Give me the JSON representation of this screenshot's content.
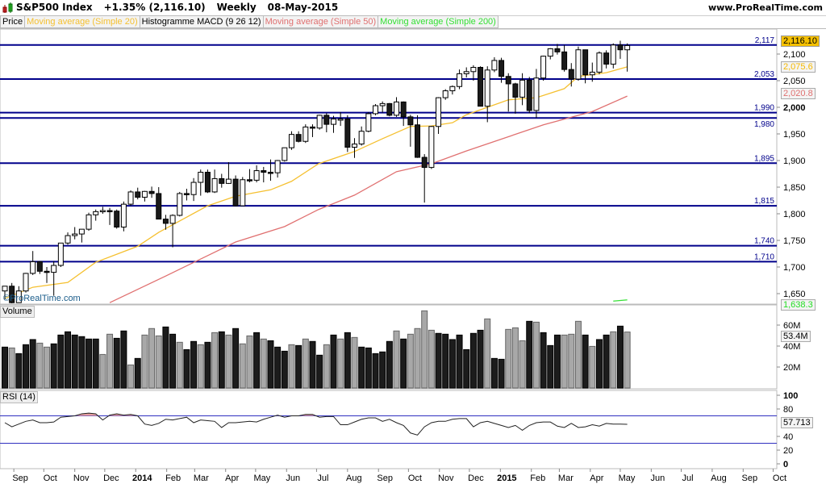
{
  "header": {
    "instrument": "S&P500 Index",
    "change": "+1.35% (2,116.10)",
    "period": "Weekly",
    "date": "08-May-2015",
    "site": "www.ProRealTime.com"
  },
  "legend": [
    {
      "label": "Price",
      "color": "#000000"
    },
    {
      "label": "Moving average (Simple 20)",
      "color": "#f5c030"
    },
    {
      "label": "Histogramme MACD (9 26 12)",
      "color": "#000000"
    },
    {
      "label": "Moving average (Simple 50)",
      "color": "#e07070"
    },
    {
      "label": "Moving average (Simple 200)",
      "color": "#33e033"
    }
  ],
  "watermark": "©ProRealTime.com",
  "panels": {
    "volume": "Volume",
    "rsi": "RSI (14)"
  },
  "badges": {
    "price": "2,116.10",
    "ma20": "2,075.6",
    "ma50": "2,020.8",
    "ma200": "1,638.3",
    "volume": "53.4M",
    "rsi": "57.713"
  },
  "colors": {
    "level_line": "#00008b",
    "ma20": "#f5c030",
    "ma50": "#e07070",
    "ma200": "#33e033",
    "rsi_band": "#3030c0",
    "price_badge": "#f5c000"
  },
  "chart_data": {
    "type": "candlestick",
    "price_axis": {
      "ticks": [
        "2,100",
        "2,050",
        "2,000",
        "1,950",
        "1,900",
        "1,850",
        "1,800",
        "1,750",
        "1,700",
        "1,650"
      ],
      "tick_values": [
        2100,
        2050,
        2000,
        1950,
        1900,
        1850,
        1800,
        1750,
        1700,
        1650
      ],
      "range": [
        1630,
        2150
      ]
    },
    "levels": [
      {
        "value": 2117,
        "label": "2,117"
      },
      {
        "value": 2053,
        "label": "2,053"
      },
      {
        "value": 1990,
        "label": "1,990"
      },
      {
        "value": 1980,
        "label": "1,980"
      },
      {
        "value": 1895,
        "label": "1,895"
      },
      {
        "value": 1815,
        "label": "1,815"
      },
      {
        "value": 1740,
        "label": "1,740"
      },
      {
        "value": 1710,
        "label": "1,710"
      }
    ],
    "dates": [
      "2013-08-23",
      "2013-08-30",
      "2013-09-06",
      "2013-09-13",
      "2013-09-20",
      "2013-09-27",
      "2013-10-04",
      "2013-10-11",
      "2013-10-18",
      "2013-10-25",
      "2013-11-01",
      "2013-11-08",
      "2013-11-15",
      "2013-11-22",
      "2013-11-29",
      "2013-12-06",
      "2013-12-13",
      "2013-12-20",
      "2013-12-27",
      "2014-01-03",
      "2014-01-10",
      "2014-01-17",
      "2014-01-24",
      "2014-01-31",
      "2014-02-07",
      "2014-02-14",
      "2014-02-21",
      "2014-02-28",
      "2014-03-07",
      "2014-03-14",
      "2014-03-21",
      "2014-03-28",
      "2014-04-04",
      "2014-04-11",
      "2014-04-18",
      "2014-04-25",
      "2014-05-02",
      "2014-05-09",
      "2014-05-16",
      "2014-05-23",
      "2014-05-30",
      "2014-06-06",
      "2014-06-13",
      "2014-06-20",
      "2014-06-27",
      "2014-07-04",
      "2014-07-11",
      "2014-07-18",
      "2014-07-25",
      "2014-08-01",
      "2014-08-08",
      "2014-08-15",
      "2014-08-22",
      "2014-08-29",
      "2014-09-05",
      "2014-09-12",
      "2014-09-19",
      "2014-09-26",
      "2014-10-03",
      "2014-10-10",
      "2014-10-17",
      "2014-10-24",
      "2014-10-31",
      "2014-11-07",
      "2014-11-14",
      "2014-11-21",
      "2014-11-28",
      "2014-12-05",
      "2014-12-12",
      "2014-12-19",
      "2014-12-26",
      "2015-01-02",
      "2015-01-09",
      "2015-01-16",
      "2015-01-23",
      "2015-01-30",
      "2015-02-06",
      "2015-02-13",
      "2015-02-20",
      "2015-02-27",
      "2015-03-06",
      "2015-03-13",
      "2015-03-20",
      "2015-03-27",
      "2015-04-03",
      "2015-04-10",
      "2015-04-17",
      "2015-04-24",
      "2015-05-01",
      "2015-05-08"
    ],
    "ohlc": [
      [
        1655,
        1664,
        1639,
        1664
      ],
      [
        1664,
        1670,
        1627,
        1633
      ],
      [
        1633,
        1664,
        1633,
        1655
      ],
      [
        1655,
        1689,
        1652,
        1688
      ],
      [
        1688,
        1730,
        1685,
        1710
      ],
      [
        1710,
        1711,
        1687,
        1692
      ],
      [
        1692,
        1700,
        1670,
        1690
      ],
      [
        1690,
        1711,
        1646,
        1703
      ],
      [
        1703,
        1745,
        1700,
        1745
      ],
      [
        1745,
        1765,
        1742,
        1759
      ],
      [
        1759,
        1775,
        1752,
        1762
      ],
      [
        1762,
        1771,
        1746,
        1771
      ],
      [
        1771,
        1802,
        1768,
        1798
      ],
      [
        1798,
        1808,
        1787,
        1804
      ],
      [
        1804,
        1813,
        1800,
        1806
      ],
      [
        1806,
        1811,
        1779,
        1805
      ],
      [
        1805,
        1808,
        1772,
        1775
      ],
      [
        1775,
        1823,
        1767,
        1818
      ],
      [
        1818,
        1844,
        1815,
        1841
      ],
      [
        1841,
        1849,
        1827,
        1831
      ],
      [
        1831,
        1843,
        1823,
        1842
      ],
      [
        1842,
        1851,
        1830,
        1838
      ],
      [
        1838,
        1850,
        1790,
        1790
      ],
      [
        1790,
        1798,
        1770,
        1782
      ],
      [
        1782,
        1799,
        1737,
        1797
      ],
      [
        1797,
        1841,
        1795,
        1838
      ],
      [
        1838,
        1847,
        1825,
        1836
      ],
      [
        1836,
        1867,
        1824,
        1859
      ],
      [
        1859,
        1883,
        1834,
        1878
      ],
      [
        1878,
        1883,
        1839,
        1841
      ],
      [
        1841,
        1883,
        1839,
        1866
      ],
      [
        1866,
        1875,
        1849,
        1857
      ],
      [
        1857,
        1897,
        1856,
        1865
      ],
      [
        1865,
        1872,
        1814,
        1815
      ],
      [
        1815,
        1869,
        1816,
        1864
      ],
      [
        1864,
        1884,
        1859,
        1863
      ],
      [
        1863,
        1891,
        1859,
        1881
      ],
      [
        1881,
        1888,
        1859,
        1878
      ],
      [
        1878,
        1902,
        1862,
        1877
      ],
      [
        1877,
        1901,
        1868,
        1900
      ],
      [
        1900,
        1924,
        1898,
        1924
      ],
      [
        1924,
        1955,
        1920,
        1949
      ],
      [
        1949,
        1955,
        1934,
        1936
      ],
      [
        1936,
        1968,
        1933,
        1963
      ],
      [
        1963,
        1968,
        1944,
        1961
      ],
      [
        1961,
        1986,
        1958,
        1985
      ],
      [
        1985,
        1989,
        1953,
        1968
      ],
      [
        1968,
        1984,
        1952,
        1978
      ],
      [
        1978,
        1991,
        1965,
        1978
      ],
      [
        1978,
        1985,
        1916,
        1925
      ],
      [
        1925,
        1942,
        1905,
        1931
      ],
      [
        1931,
        1964,
        1928,
        1955
      ],
      [
        1955,
        1991,
        1953,
        1988
      ],
      [
        1988,
        2006,
        1985,
        2003
      ],
      [
        2003,
        2011,
        1990,
        2007
      ],
      [
        2007,
        2008,
        1983,
        1985
      ],
      [
        1985,
        2019,
        1982,
        2010
      ],
      [
        2010,
        2011,
        1965,
        1982
      ],
      [
        1982,
        1986,
        1926,
        1967
      ],
      [
        1967,
        1985,
        1905,
        1906
      ],
      [
        1906,
        1912,
        1821,
        1887
      ],
      [
        1887,
        1965,
        1884,
        1964
      ],
      [
        1964,
        2019,
        1950,
        2018
      ],
      [
        2018,
        2034,
        2014,
        2031
      ],
      [
        2031,
        2041,
        2024,
        2039
      ],
      [
        2039,
        2071,
        2034,
        2063
      ],
      [
        2063,
        2075,
        2056,
        2067
      ],
      [
        2067,
        2079,
        2050,
        2075
      ],
      [
        2075,
        2077,
        2002,
        2002
      ],
      [
        2002,
        2077,
        1972,
        2070
      ],
      [
        2070,
        2094,
        2066,
        2088
      ],
      [
        2088,
        2093,
        2046,
        2058
      ],
      [
        2058,
        2064,
        1992,
        2044
      ],
      [
        2044,
        2046,
        1988,
        2019
      ],
      [
        2019,
        2064,
        2004,
        2051
      ],
      [
        2051,
        2057,
        1989,
        1994
      ],
      [
        1994,
        2072,
        1980,
        2055
      ],
      [
        2055,
        2097,
        2050,
        2096
      ],
      [
        2096,
        2111,
        2090,
        2110
      ],
      [
        2110,
        2119,
        2099,
        2104
      ],
      [
        2104,
        2117,
        2067,
        2071
      ],
      [
        2071,
        2083,
        2039,
        2053
      ],
      [
        2053,
        2114,
        2050,
        2108
      ],
      [
        2108,
        2107,
        2045,
        2061
      ],
      [
        2061,
        2084,
        2048,
        2066
      ],
      [
        2066,
        2105,
        2062,
        2102
      ],
      [
        2102,
        2107,
        2073,
        2081
      ],
      [
        2081,
        2120,
        2073,
        2117
      ],
      [
        2117,
        2125,
        2091,
        2108
      ],
      [
        2108,
        2120,
        2067,
        2116
      ]
    ],
    "ma20": [
      [
        "2013-08-23",
        1641
      ],
      [
        "2013-09-20",
        1662
      ],
      [
        "2013-10-25",
        1671
      ],
      [
        "2013-11-22",
        1709
      ],
      [
        "2014-01-03",
        1739
      ],
      [
        "2014-01-24",
        1765
      ],
      [
        "2014-03-14",
        1815
      ],
      [
        "2014-04-11",
        1833
      ],
      [
        "2014-05-16",
        1845
      ],
      [
        "2014-06-06",
        1861
      ],
      [
        "2014-07-03",
        1894
      ],
      [
        "2014-08-08",
        1917
      ],
      [
        "2014-09-05",
        1941
      ],
      [
        "2014-10-03",
        1964
      ],
      [
        "2014-10-24",
        1965
      ],
      [
        "2014-11-14",
        1971
      ],
      [
        "2014-11-28",
        1986
      ],
      [
        "2014-12-19",
        2000
      ],
      [
        "2015-01-09",
        2014
      ],
      [
        "2015-02-06",
        2018
      ],
      [
        "2015-03-06",
        2035
      ],
      [
        "2015-03-20",
        2058
      ],
      [
        "2015-04-17",
        2065
      ],
      [
        "2015-05-08",
        2076
      ]
    ],
    "ma50": [
      [
        "2013-12-06",
        1633
      ],
      [
        "2014-01-31",
        1683
      ],
      [
        "2014-04-11",
        1747
      ],
      [
        "2014-05-30",
        1776
      ],
      [
        "2014-07-03",
        1808
      ],
      [
        "2014-08-08",
        1835
      ],
      [
        "2014-09-19",
        1879
      ],
      [
        "2014-10-24",
        1894
      ],
      [
        "2014-11-28",
        1918
      ],
      [
        "2015-02-13",
        1967
      ],
      [
        "2015-04-03",
        1992
      ],
      [
        "2015-05-08",
        2021
      ]
    ],
    "ma200": [
      [
        "2015-04-24",
        1636
      ],
      [
        "2015-05-08",
        1638.3
      ]
    ],
    "volume_axis": {
      "ticks": [
        "60M",
        "40M",
        "20M"
      ],
      "tick_values": [
        60,
        40,
        20
      ],
      "unit": "M"
    },
    "volume": [
      39,
      38.2,
      32.8,
      41.3,
      46.2,
      42.8,
      39,
      42.1,
      50.5,
      53.6,
      50.5,
      49,
      46.7,
      46.7,
      32,
      51.3,
      47.4,
      54.4,
      22,
      28.2,
      50.5,
      56.7,
      49.7,
      58.2,
      51.3,
      43.6,
      36.6,
      44.4,
      41.3,
      43.6,
      52.8,
      53.6,
      50.5,
      56.7,
      42.1,
      49.7,
      52.8,
      46.7,
      45.1,
      39,
      35.1,
      41.3,
      40.5,
      46.7,
      44.4,
      31.3,
      41.3,
      50.5,
      46.7,
      52.8,
      48.2,
      39,
      38.2,
      32.8,
      34.4,
      44.4,
      54.4,
      46.7,
      51.3,
      56.7,
      73.6,
      55.1,
      52.1,
      51.3,
      46.2,
      50.5,
      36.6,
      52.1,
      55.1,
      65.9,
      28.2,
      27.4,
      55.9,
      57.4,
      45.1,
      63.6,
      62.8,
      52.8,
      40.5,
      50.5,
      50.5,
      51.3,
      63.6,
      50.5,
      39.7,
      46.2,
      50.5,
      53.6,
      59,
      53.4
    ],
    "volume_shade": "dlddd lldddddddl lddl dllldd lddl dl dldlldl dddldl ddldldlddddd ldlllldddddddl ddllldldddllldlddldld",
    "rsi_axis": {
      "ticks": [
        "100",
        "80",
        "40",
        "20",
        "0"
      ],
      "tick_values": [
        100,
        80,
        40,
        20,
        0
      ],
      "bands": [
        70,
        30
      ]
    },
    "rsi": [
      60,
      54,
      58,
      62,
      64,
      60,
      60,
      61,
      68,
      69,
      70,
      73,
      74,
      73,
      64,
      71,
      73,
      71,
      72,
      70,
      58,
      56,
      59,
      65,
      64,
      66,
      68,
      60,
      64,
      63,
      62,
      53,
      60,
      60,
      61,
      62,
      61,
      65,
      68,
      71,
      68,
      70,
      70,
      72,
      72,
      68,
      69,
      69,
      57,
      57,
      61,
      65,
      67,
      67,
      62,
      65,
      60,
      56,
      45,
      42,
      54,
      60,
      62,
      62,
      65,
      66,
      66,
      54,
      60,
      62,
      59,
      56,
      53,
      56,
      49,
      56,
      60,
      61,
      61,
      55,
      53,
      59,
      53,
      54,
      57,
      55,
      59,
      58,
      58,
      57.713
    ],
    "x_axis": [
      {
        "label": "Sep",
        "date": "2013-09-01"
      },
      {
        "label": "Oct",
        "date": "2013-10-01"
      },
      {
        "label": "Nov",
        "date": "2013-11-01"
      },
      {
        "label": "Dec",
        "date": "2013-12-01"
      },
      {
        "label": "2014",
        "date": "2014-01-01",
        "bold": true
      },
      {
        "label": "Feb",
        "date": "2014-02-01"
      },
      {
        "label": "Mar",
        "date": "2014-03-01"
      },
      {
        "label": "Apr",
        "date": "2014-04-01"
      },
      {
        "label": "May",
        "date": "2014-05-01"
      },
      {
        "label": "Jun",
        "date": "2014-06-01"
      },
      {
        "label": "Jul",
        "date": "2014-07-01"
      },
      {
        "label": "Aug",
        "date": "2014-08-01"
      },
      {
        "label": "Sep",
        "date": "2014-09-01"
      },
      {
        "label": "Oct",
        "date": "2014-10-01"
      },
      {
        "label": "Nov",
        "date": "2014-11-01"
      },
      {
        "label": "Dec",
        "date": "2014-12-01"
      },
      {
        "label": "2015",
        "date": "2015-01-01",
        "bold": true
      },
      {
        "label": "Feb",
        "date": "2015-02-01"
      },
      {
        "label": "Mar",
        "date": "2015-03-01"
      },
      {
        "label": "Apr",
        "date": "2015-04-01"
      },
      {
        "label": "May",
        "date": "2015-05-01"
      },
      {
        "label": "Jun",
        "date": "2015-06-01"
      },
      {
        "label": "Jul",
        "date": "2015-07-01"
      },
      {
        "label": "Aug",
        "date": "2015-08-01"
      },
      {
        "label": "Sep",
        "date": "2015-09-01"
      },
      {
        "label": "Oct",
        "date": "2015-10-01"
      }
    ]
  }
}
